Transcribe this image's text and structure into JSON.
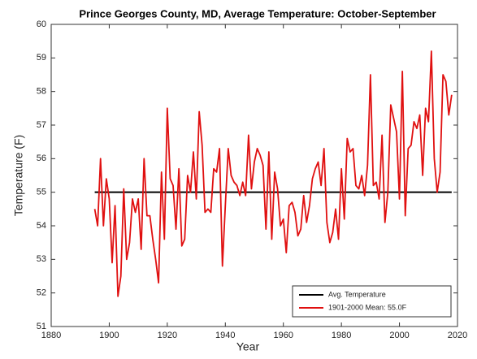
{
  "chart_data": {
    "type": "line",
    "title": "Prince Georges County, MD, Average Temperature: October-September",
    "xlabel": "Year",
    "ylabel": "Temperature (F)",
    "xlim": [
      1880,
      2020
    ],
    "xticks": [
      1880,
      1900,
      1920,
      1940,
      1960,
      1980,
      2000,
      2020
    ],
    "ylim": [
      51,
      60
    ],
    "yticks": [
      51,
      52,
      53,
      54,
      55,
      56,
      57,
      58,
      59,
      60
    ],
    "grid": false,
    "legend": "lower right",
    "series": [
      {
        "name": "Avg. Temperature",
        "color": "#000000",
        "x": [
          1895,
          2018
        ],
        "values": [
          55.0,
          55.0
        ]
      },
      {
        "name": "1901-2000 Mean: 55.0F",
        "color": "#e01010",
        "x": [
          1895,
          1896,
          1897,
          1898,
          1899,
          1900,
          1901,
          1902,
          1903,
          1904,
          1905,
          1906,
          1907,
          1908,
          1909,
          1910,
          1911,
          1912,
          1913,
          1914,
          1915,
          1916,
          1917,
          1918,
          1919,
          1920,
          1921,
          1922,
          1923,
          1924,
          1925,
          1926,
          1927,
          1928,
          1929,
          1930,
          1931,
          1932,
          1933,
          1934,
          1935,
          1936,
          1937,
          1938,
          1939,
          1940,
          1941,
          1942,
          1943,
          1944,
          1945,
          1946,
          1947,
          1948,
          1949,
          1950,
          1951,
          1952,
          1953,
          1954,
          1955,
          1956,
          1957,
          1958,
          1959,
          1960,
          1961,
          1962,
          1963,
          1964,
          1965,
          1966,
          1967,
          1968,
          1969,
          1970,
          1971,
          1972,
          1973,
          1974,
          1975,
          1976,
          1977,
          1978,
          1979,
          1980,
          1981,
          1982,
          1983,
          1984,
          1985,
          1986,
          1987,
          1988,
          1989,
          1990,
          1991,
          1992,
          1993,
          1994,
          1995,
          1996,
          1997,
          1998,
          1999,
          2000,
          2001,
          2002,
          2003,
          2004,
          2005,
          2006,
          2007,
          2008,
          2009,
          2010,
          2011,
          2012,
          2013,
          2014,
          2015,
          2016,
          2017,
          2018
        ],
        "values": [
          54.5,
          54.0,
          56.0,
          54.0,
          55.4,
          54.8,
          52.9,
          54.6,
          51.9,
          52.5,
          55.1,
          53.0,
          53.5,
          54.8,
          54.4,
          54.8,
          53.3,
          56.0,
          54.3,
          54.3,
          53.6,
          53.0,
          52.3,
          55.6,
          53.6,
          57.5,
          55.4,
          55.2,
          53.9,
          55.7,
          53.4,
          53.6,
          55.5,
          55.0,
          56.2,
          54.8,
          57.4,
          56.4,
          54.4,
          54.5,
          54.4,
          55.7,
          55.6,
          56.3,
          52.8,
          54.6,
          56.3,
          55.5,
          55.3,
          55.2,
          54.9,
          55.3,
          54.9,
          56.7,
          55.1,
          55.9,
          56.3,
          56.1,
          55.8,
          53.9,
          56.2,
          53.6,
          55.6,
          55.1,
          54.0,
          54.2,
          53.2,
          54.6,
          54.7,
          54.4,
          53.7,
          53.9,
          54.9,
          54.1,
          54.6,
          55.4,
          55.7,
          55.9,
          55.2,
          56.3,
          54.1,
          53.5,
          53.8,
          54.5,
          53.6,
          55.7,
          54.2,
          56.6,
          56.2,
          56.3,
          55.2,
          55.1,
          55.5,
          54.9,
          55.8,
          58.5,
          55.2,
          55.3,
          54.8,
          56.7,
          54.1,
          55.0,
          57.6,
          57.2,
          56.8,
          54.8,
          58.6,
          54.3,
          56.3,
          56.4,
          57.1,
          56.9,
          57.3,
          55.5,
          57.5,
          57.1,
          59.2,
          56.0,
          55.0,
          55.6,
          58.5,
          58.3,
          57.3,
          57.9
        ]
      }
    ]
  }
}
